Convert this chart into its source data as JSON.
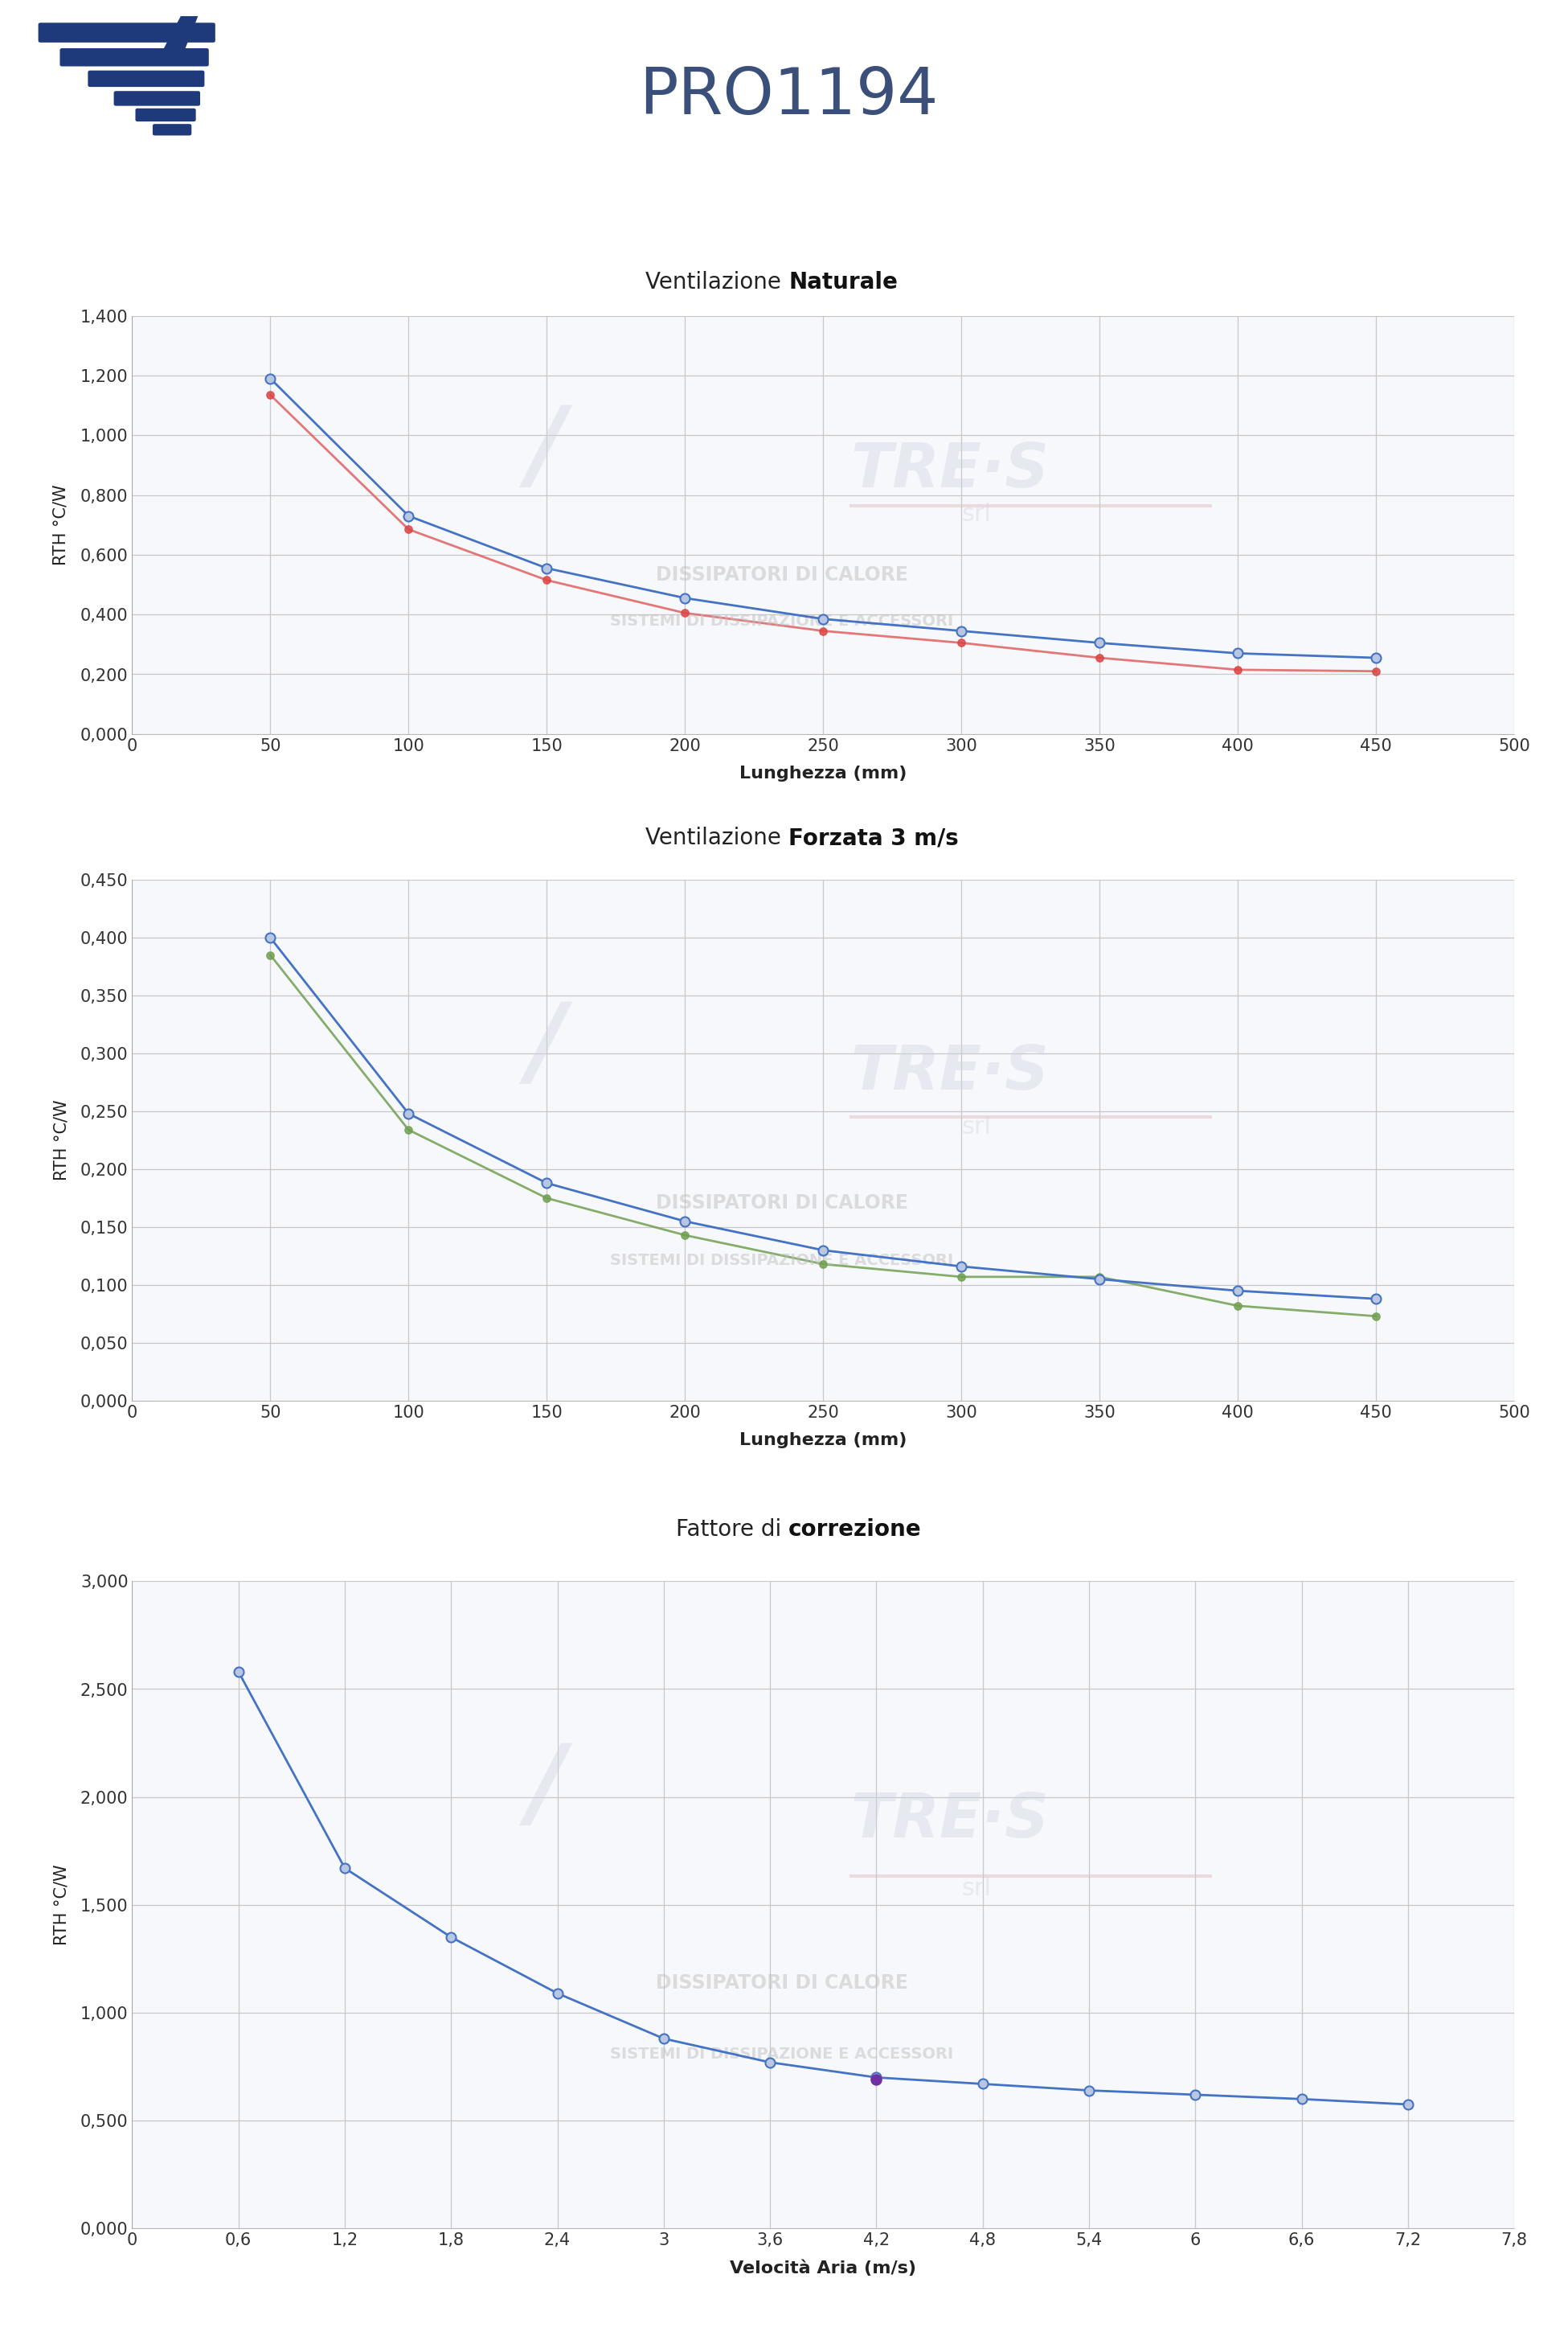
{
  "title": "PRO1194",
  "page_bg": "#ffffff",
  "header_bg": "#cdd3e8",
  "chart_panel_bg": "#ffffff",
  "chart1": {
    "title_normal": "Ventilazione ",
    "title_bold": "Naturale",
    "x": [
      50,
      100,
      150,
      200,
      250,
      300,
      350,
      400,
      450
    ],
    "y_blue": [
      1.19,
      0.73,
      0.555,
      0.455,
      0.385,
      0.345,
      0.305,
      0.27,
      0.255
    ],
    "y_red": [
      1.135,
      0.685,
      0.515,
      0.405,
      0.345,
      0.305,
      0.255,
      0.215,
      0.21
    ],
    "xlabel": "Lunghezza (mm)",
    "ylabel": "RTH °C/W",
    "xlim": [
      0,
      500
    ],
    "ylim": [
      0.0,
      1.4
    ],
    "yticks": [
      0.0,
      0.2,
      0.4,
      0.6,
      0.8,
      1.0,
      1.2,
      1.4
    ],
    "ytick_labels": [
      "0,000",
      "0,200",
      "0,400",
      "0,600",
      "0,800",
      "1,000",
      "1,200",
      "1,400"
    ],
    "xticks": [
      0,
      50,
      100,
      150,
      200,
      250,
      300,
      350,
      400,
      450,
      500
    ],
    "xtick_labels": [
      "0",
      "50",
      "100",
      "150",
      "200",
      "250",
      "300",
      "350",
      "400",
      "450",
      "500"
    ]
  },
  "chart2": {
    "title_normal": "Ventilazione ",
    "title_bold": "Forzata 3 m/s",
    "x": [
      50,
      100,
      150,
      200,
      250,
      300,
      350,
      400,
      450
    ],
    "y_blue": [
      0.4,
      0.248,
      0.188,
      0.155,
      0.13,
      0.116,
      0.105,
      0.095,
      0.088
    ],
    "y_green": [
      0.385,
      0.234,
      0.175,
      0.143,
      0.118,
      0.107,
      0.107,
      0.082,
      0.073
    ],
    "xlabel": "Lunghezza (mm)",
    "ylabel": "RTH °C/W",
    "xlim": [
      0,
      500
    ],
    "ylim": [
      0.0,
      0.45
    ],
    "yticks": [
      0.0,
      0.05,
      0.1,
      0.15,
      0.2,
      0.25,
      0.3,
      0.35,
      0.4,
      0.45
    ],
    "ytick_labels": [
      "0,000",
      "0,050",
      "0,100",
      "0,150",
      "0,200",
      "0,250",
      "0,300",
      "0,350",
      "0,400",
      "0,450"
    ],
    "xticks": [
      0,
      50,
      100,
      150,
      200,
      250,
      300,
      350,
      400,
      450,
      500
    ],
    "xtick_labels": [
      "0",
      "50",
      "100",
      "150",
      "200",
      "250",
      "300",
      "350",
      "400",
      "450",
      "500"
    ]
  },
  "chart3": {
    "title_normal": "Fattore di ",
    "title_bold": "correzione",
    "x": [
      0.6,
      1.2,
      1.8,
      2.4,
      3.0,
      3.6,
      4.2,
      4.8,
      5.4,
      6.0,
      6.6,
      7.2
    ],
    "y_blue": [
      2.58,
      1.67,
      1.35,
      1.09,
      0.88,
      0.77,
      0.7,
      0.67,
      0.64,
      0.62,
      0.6,
      0.575
    ],
    "purple_x": [
      4.2
    ],
    "purple_y": [
      0.69
    ],
    "xlabel": "Velocità Aria (m/s)",
    "ylabel": "RTH °C/W",
    "xlim": [
      0,
      7.8
    ],
    "ylim": [
      0.0,
      3.0
    ],
    "yticks": [
      0.0,
      0.5,
      1.0,
      1.5,
      2.0,
      2.5,
      3.0
    ],
    "ytick_labels": [
      "0,000",
      "0,500",
      "1,000",
      "1,500",
      "2,000",
      "2,500",
      "3,000"
    ],
    "xticks": [
      0,
      0.6,
      1.2,
      1.8,
      2.4,
      3.0,
      3.6,
      4.2,
      4.8,
      5.4,
      6.0,
      6.6,
      7.2,
      7.8
    ],
    "xtick_labels": [
      "0",
      "0,6",
      "1,2",
      "1,8",
      "2,4",
      "3",
      "3,6",
      "4,2",
      "4,8",
      "5,4",
      "6",
      "6,6",
      "7,2",
      "7,8"
    ]
  },
  "blue_line_color": "#4472c4",
  "blue_marker_face": "#b8c6e0",
  "blue_marker_edge": "#4472c4",
  "red_line_color": "#e06060",
  "red_marker_color": "#dd4444",
  "green_line_color": "#70a050",
  "green_marker_color": "#70a050",
  "purple_marker_color": "#7030a0",
  "grid_color": "#c8c8c8",
  "logo_color": "#1e3a7a",
  "title_color": "#3a4f7a"
}
